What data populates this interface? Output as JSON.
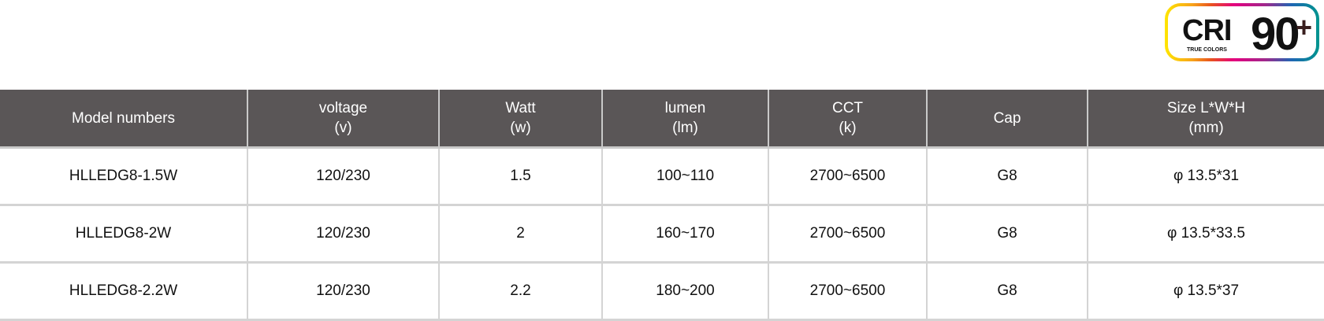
{
  "badge": {
    "cri": "CRI",
    "value": "90",
    "plus": "+",
    "subtitle": "TRUE COLORS"
  },
  "table": {
    "headers": [
      [
        "Model numbers",
        ""
      ],
      [
        "voltage",
        "(v)"
      ],
      [
        "Watt",
        "(w)"
      ],
      [
        "lumen",
        "(lm)"
      ],
      [
        "CCT",
        "(k)"
      ],
      [
        "Cap",
        ""
      ],
      [
        "Size L*W*H",
        "(mm)"
      ]
    ],
    "rows": [
      [
        "HLLEDG8-1.5W",
        "120/230",
        "1.5",
        "100~110",
        "2700~6500",
        "G8",
        "φ 13.5*31"
      ],
      [
        "HLLEDG8-2W",
        "120/230",
        "2",
        "160~170",
        "2700~6500",
        "G8",
        "φ 13.5*33.5"
      ],
      [
        "HLLEDG8-2.2W",
        "120/230",
        "2.2",
        "180~200",
        "2700~6500",
        "G8",
        "φ 13.5*37"
      ]
    ]
  }
}
